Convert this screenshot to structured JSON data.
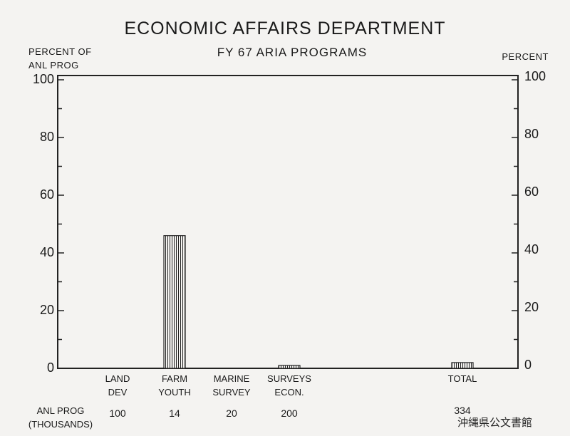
{
  "title": "ECONOMIC AFFAIRS DEPARTMENT",
  "subtitle": "FY 67 ARIA PROGRAMS",
  "left_axis_title": [
    "PERCENT OF",
    "ANL PROG"
  ],
  "right_axis_title": "PERCENT",
  "row_label": [
    "ANL PROG",
    "(THOUSANDS)"
  ],
  "watermark": "沖縄県公文書館",
  "chart_data": {
    "type": "bar",
    "title": "ECONOMIC AFFAIRS DEPARTMENT",
    "subtitle": "FY 67 ARIA PROGRAMS",
    "ylabel": "PERCENT OF ANL PROG",
    "ylabel_right": "PERCENT",
    "ylim": [
      0,
      100
    ],
    "yticks": [
      0,
      20,
      40,
      60,
      80,
      100
    ],
    "grid": false,
    "categories": [
      {
        "label": [
          "LAND",
          "DEV"
        ],
        "anl_prog": "100",
        "value": 0
      },
      {
        "label": [
          "FARM",
          "YOUTH"
        ],
        "anl_prog": "14",
        "value": 46
      },
      {
        "label": [
          "MARINE",
          "SURVEY"
        ],
        "anl_prog": "20",
        "value": 0
      },
      {
        "label": [
          "SURVEYS",
          "ECON."
        ],
        "anl_prog": "200",
        "value": 1
      },
      {
        "label": [
          "TOTAL"
        ],
        "anl_prog": "334",
        "value": 2
      }
    ]
  }
}
